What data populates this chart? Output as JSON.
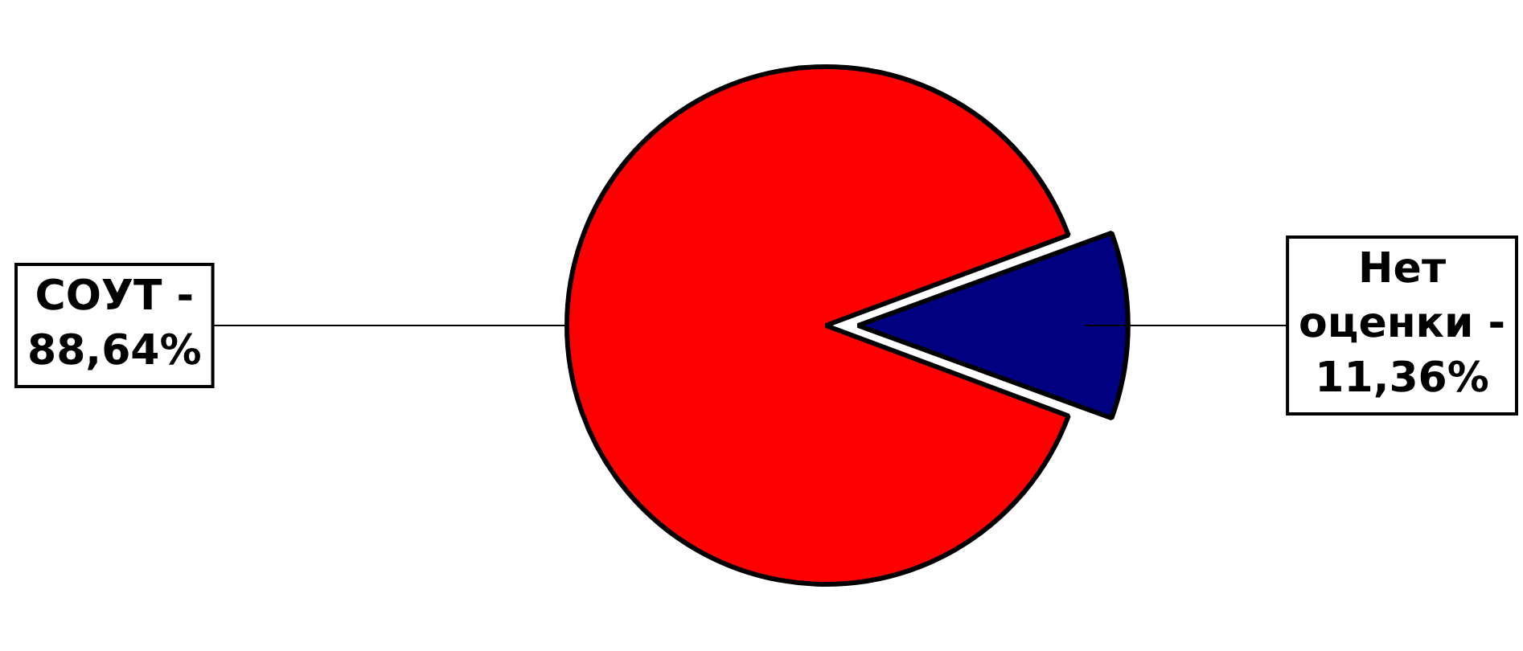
{
  "chart_data": {
    "type": "pie",
    "categories": [
      "СОУТ -",
      "Нет оценки -"
    ],
    "values": [
      88.64,
      11.36
    ],
    "colors": [
      "#ff0000",
      "#000080"
    ],
    "value_labels": [
      "88,64%",
      "11,36%"
    ],
    "legend": false
  }
}
